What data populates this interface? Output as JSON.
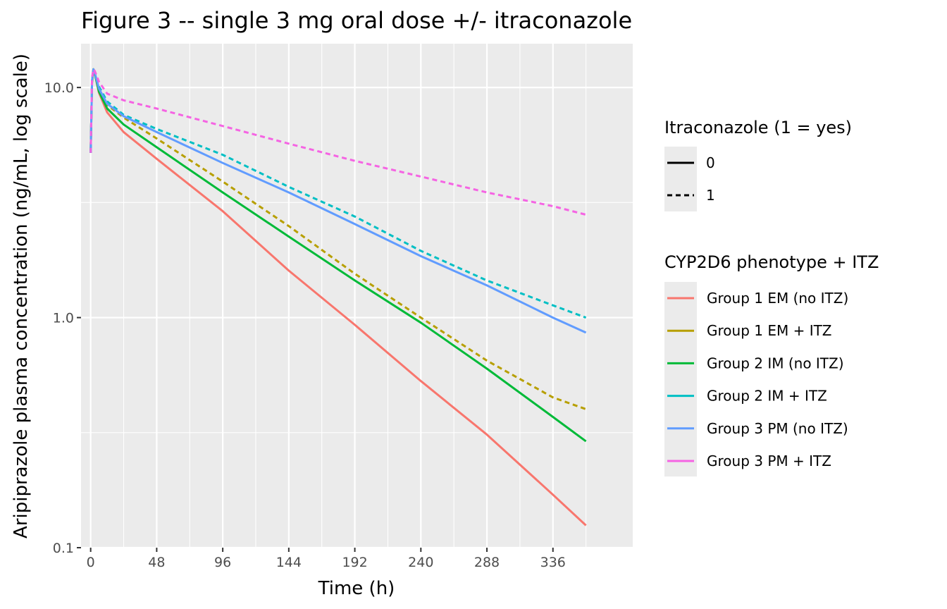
{
  "chart_data": {
    "type": "line",
    "title": "Figure 3 -- single 3 mg oral dose +/- itraconazole",
    "xlabel": "Time (h)",
    "ylabel": "Aripiprazole plasma concentration (ng/mL, log scale)",
    "x_scale": "linear",
    "y_scale": "log10",
    "xlim": [
      -7,
      394
    ],
    "ylim": [
      0.1,
      15.5
    ],
    "x_ticks": [
      0,
      48,
      96,
      144,
      192,
      240,
      288,
      336
    ],
    "x_tick_labels": [
      "0",
      "48",
      "96",
      "144",
      "192",
      "240",
      "288",
      "336"
    ],
    "y_ticks": [
      0.1,
      1,
      10
    ],
    "y_tick_labels": [
      "0.1",
      "1.0",
      "10.0"
    ],
    "grid": true,
    "legend_position": "right",
    "legends": [
      {
        "title": "Itraconazole (1 = yes)",
        "kind": "linetype",
        "entries": [
          {
            "label": "0",
            "linetype": "solid"
          },
          {
            "label": "1",
            "linetype": "dashed"
          }
        ]
      },
      {
        "title": "CYP2D6 phenotype + ITZ",
        "kind": "color",
        "entries": [
          {
            "label": "Group 1 EM (no ITZ)",
            "color": "#F8766D"
          },
          {
            "label": "Group 1 EM + ITZ",
            "color": "#B79F00"
          },
          {
            "label": "Group 2 IM (no ITZ)",
            "color": "#00BA38"
          },
          {
            "label": "Group 2 IM + ITZ",
            "color": "#00BFC4"
          },
          {
            "label": "Group 3 PM (no ITZ)",
            "color": "#619CFF"
          },
          {
            "label": "Group 3 PM + ITZ",
            "color": "#F564E3"
          }
        ]
      }
    ],
    "series": [
      {
        "name": "Group 1 EM (no ITZ)",
        "color": "#F8766D",
        "linetype": "solid",
        "x": [
          0,
          1,
          2,
          3,
          6,
          12,
          24,
          48,
          96,
          144,
          192,
          240,
          288,
          336,
          360
        ],
        "y": [
          5.2,
          10.5,
          12.0,
          11.5,
          9.5,
          7.8,
          6.4,
          4.9,
          2.9,
          1.6,
          0.93,
          0.53,
          0.31,
          0.17,
          0.125
        ]
      },
      {
        "name": "Group 1 EM + ITZ",
        "color": "#B79F00",
        "linetype": "dashed",
        "x": [
          0,
          1,
          2,
          3,
          6,
          12,
          24,
          48,
          96,
          144,
          192,
          240,
          288,
          336,
          360
        ],
        "y": [
          5.2,
          10.8,
          12.0,
          11.6,
          9.9,
          8.4,
          7.4,
          6.0,
          3.9,
          2.5,
          1.55,
          1.0,
          0.65,
          0.45,
          0.4
        ]
      },
      {
        "name": "Group 2 IM (no ITZ)",
        "color": "#00BA38",
        "linetype": "solid",
        "x": [
          0,
          1,
          2,
          3,
          6,
          12,
          24,
          48,
          96,
          144,
          192,
          240,
          288,
          336,
          360
        ],
        "y": [
          5.2,
          10.6,
          12.0,
          11.5,
          9.6,
          8.1,
          6.9,
          5.5,
          3.5,
          2.25,
          1.45,
          0.95,
          0.6,
          0.37,
          0.29
        ]
      },
      {
        "name": "Group 2 IM + ITZ",
        "color": "#00BFC4",
        "linetype": "dashed",
        "x": [
          0,
          1,
          2,
          3,
          6,
          12,
          24,
          48,
          96,
          144,
          192,
          240,
          288,
          336,
          360
        ],
        "y": [
          5.2,
          10.9,
          12.0,
          11.7,
          10.1,
          8.7,
          7.6,
          6.6,
          5.1,
          3.7,
          2.75,
          1.95,
          1.45,
          1.13,
          1.0
        ]
      },
      {
        "name": "Group 3 PM (no ITZ)",
        "color": "#619CFF",
        "linetype": "solid",
        "x": [
          0,
          1,
          2,
          3,
          6,
          12,
          24,
          48,
          96,
          144,
          192,
          240,
          288,
          336,
          360
        ],
        "y": [
          5.2,
          10.7,
          12.0,
          11.6,
          9.9,
          8.5,
          7.5,
          6.4,
          4.7,
          3.5,
          2.55,
          1.85,
          1.38,
          1.0,
          0.86
        ]
      },
      {
        "name": "Group 3 PM + ITZ",
        "color": "#F564E3",
        "linetype": "dashed",
        "x": [
          0,
          1,
          2,
          3,
          6,
          12,
          24,
          48,
          96,
          144,
          192,
          240,
          288,
          336,
          360
        ],
        "y": [
          5.2,
          11.0,
          12.0,
          11.8,
          10.6,
          9.4,
          8.8,
          8.1,
          6.8,
          5.7,
          4.8,
          4.1,
          3.5,
          3.05,
          2.8
        ]
      }
    ]
  }
}
